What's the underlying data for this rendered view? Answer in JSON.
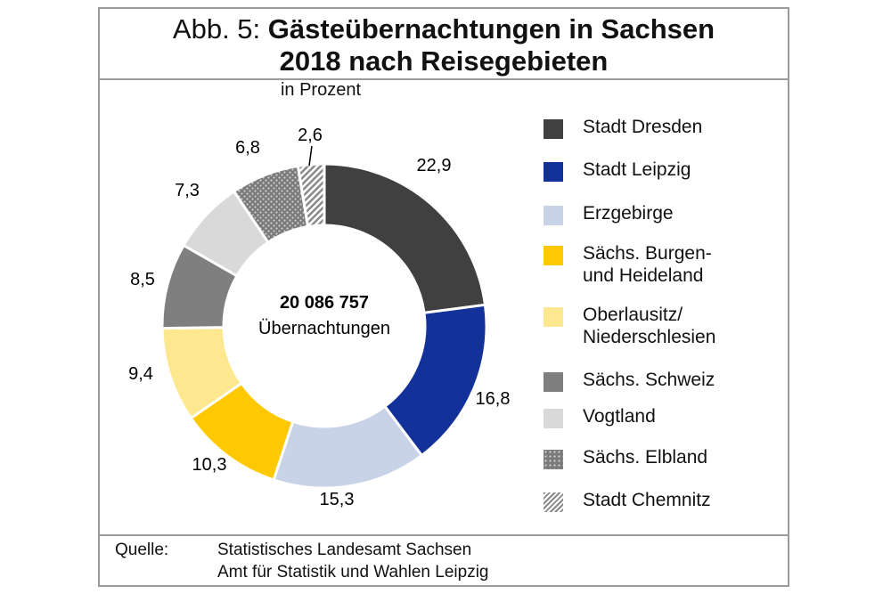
{
  "title": {
    "prefix": "Abb. 5:",
    "line1": "Gästeübernachtungen in Sachsen",
    "line2": "2018 nach Reisegebieten"
  },
  "subtitle": "in Prozent",
  "center": {
    "value": "20 086 757",
    "label": "Übernachtungen"
  },
  "source": {
    "label": "Quelle:",
    "line1": "Statistisches Landesamt Sachsen",
    "line2": "Amt für Statistik und Wahlen Leipzig"
  },
  "chart_data": {
    "type": "pie",
    "variant": "donut",
    "unit": "in Prozent",
    "legend_position": "right",
    "categories": [
      "Stadt Dresden",
      "Stadt Leipzig",
      "Erzgebirge",
      "Sächs. Burgen- und Heideland",
      "Oberlausitz/ Niederschlesien",
      "Sächs. Schweiz",
      "Vogtland",
      "Sächs. Elbland",
      "Stadt Chemnitz"
    ],
    "legend_lines": [
      [
        "Stadt Dresden"
      ],
      [
        "Stadt Leipzig"
      ],
      [
        "Erzgebirge"
      ],
      [
        "Sächs. Burgen-",
        "und Heideland"
      ],
      [
        "Oberlausitz/",
        "Niederschlesien"
      ],
      [
        "Sächs. Schweiz"
      ],
      [
        "Vogtland"
      ],
      [
        "Sächs. Elbland"
      ],
      [
        "Stadt Chemnitz"
      ]
    ],
    "values": [
      22.9,
      16.8,
      15.3,
      10.3,
      9.4,
      8.5,
      7.3,
      6.8,
      2.6
    ],
    "data_labels": [
      "22,9",
      "16,8",
      "15,3",
      "10,3",
      "9,4",
      "8,5",
      "7,3",
      "6,8",
      "2,6"
    ],
    "colors": [
      "#404040",
      "#12329a",
      "#c8d3e8",
      "#ffc800",
      "#fde890",
      "#7f7f7f",
      "#d9d9d9",
      "dots",
      "stripes"
    ]
  }
}
